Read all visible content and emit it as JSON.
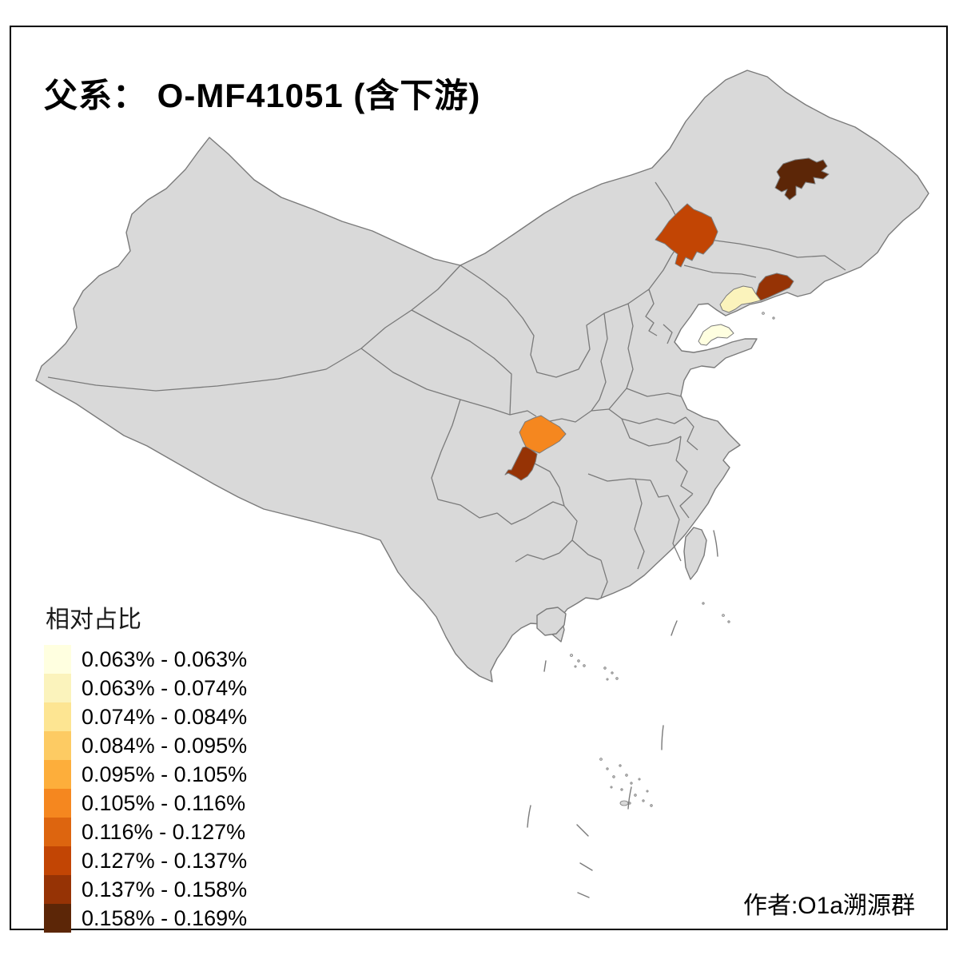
{
  "title": "父系： O-MF41051 (含下游)",
  "author": "作者:O1a溯源群",
  "legend": {
    "title": "相对占比",
    "bins": [
      {
        "range": "0.063% - 0.063%",
        "color": "#FFFFE0"
      },
      {
        "range": "0.063% - 0.074%",
        "color": "#FBF3BC"
      },
      {
        "range": "0.074% - 0.084%",
        "color": "#FDE592"
      },
      {
        "range": "0.084% - 0.095%",
        "color": "#FDCB63"
      },
      {
        "range": "0.095% - 0.105%",
        "color": "#FDAE3B"
      },
      {
        "range": "0.105% - 0.116%",
        "color": "#F5871F"
      },
      {
        "range": "0.116% - 0.127%",
        "color": "#DD650F"
      },
      {
        "range": "0.127% - 0.137%",
        "color": "#C24504"
      },
      {
        "range": "0.137% - 0.158%",
        "color": "#963305"
      },
      {
        "range": "0.158% - 0.169%",
        "color": "#5C2607"
      }
    ]
  },
  "map": {
    "base_fill": "#D9D9D9",
    "border_color": "#7A7A7A",
    "frame_color": "#000000",
    "regions": [
      {
        "id": "heilongjiang-central",
        "range": "0.158% - 0.169%",
        "color": "#5C2607"
      },
      {
        "id": "inner-mongolia-southeast",
        "range": "0.127% - 0.137%",
        "color": "#C24504"
      },
      {
        "id": "liaodong-tip",
        "range": "0.137% - 0.158%",
        "color": "#963305"
      },
      {
        "id": "liaodong-west",
        "range": "0.063% - 0.074%",
        "color": "#FBF3BC"
      },
      {
        "id": "shandong-peninsula",
        "range": "0.063% - 0.063%",
        "color": "#FFFFE0"
      },
      {
        "id": "chongqing-north",
        "range": "0.105% - 0.116%",
        "color": "#F5871F"
      },
      {
        "id": "chongqing-southwest",
        "range": "0.137% - 0.158%",
        "color": "#963305"
      }
    ]
  }
}
